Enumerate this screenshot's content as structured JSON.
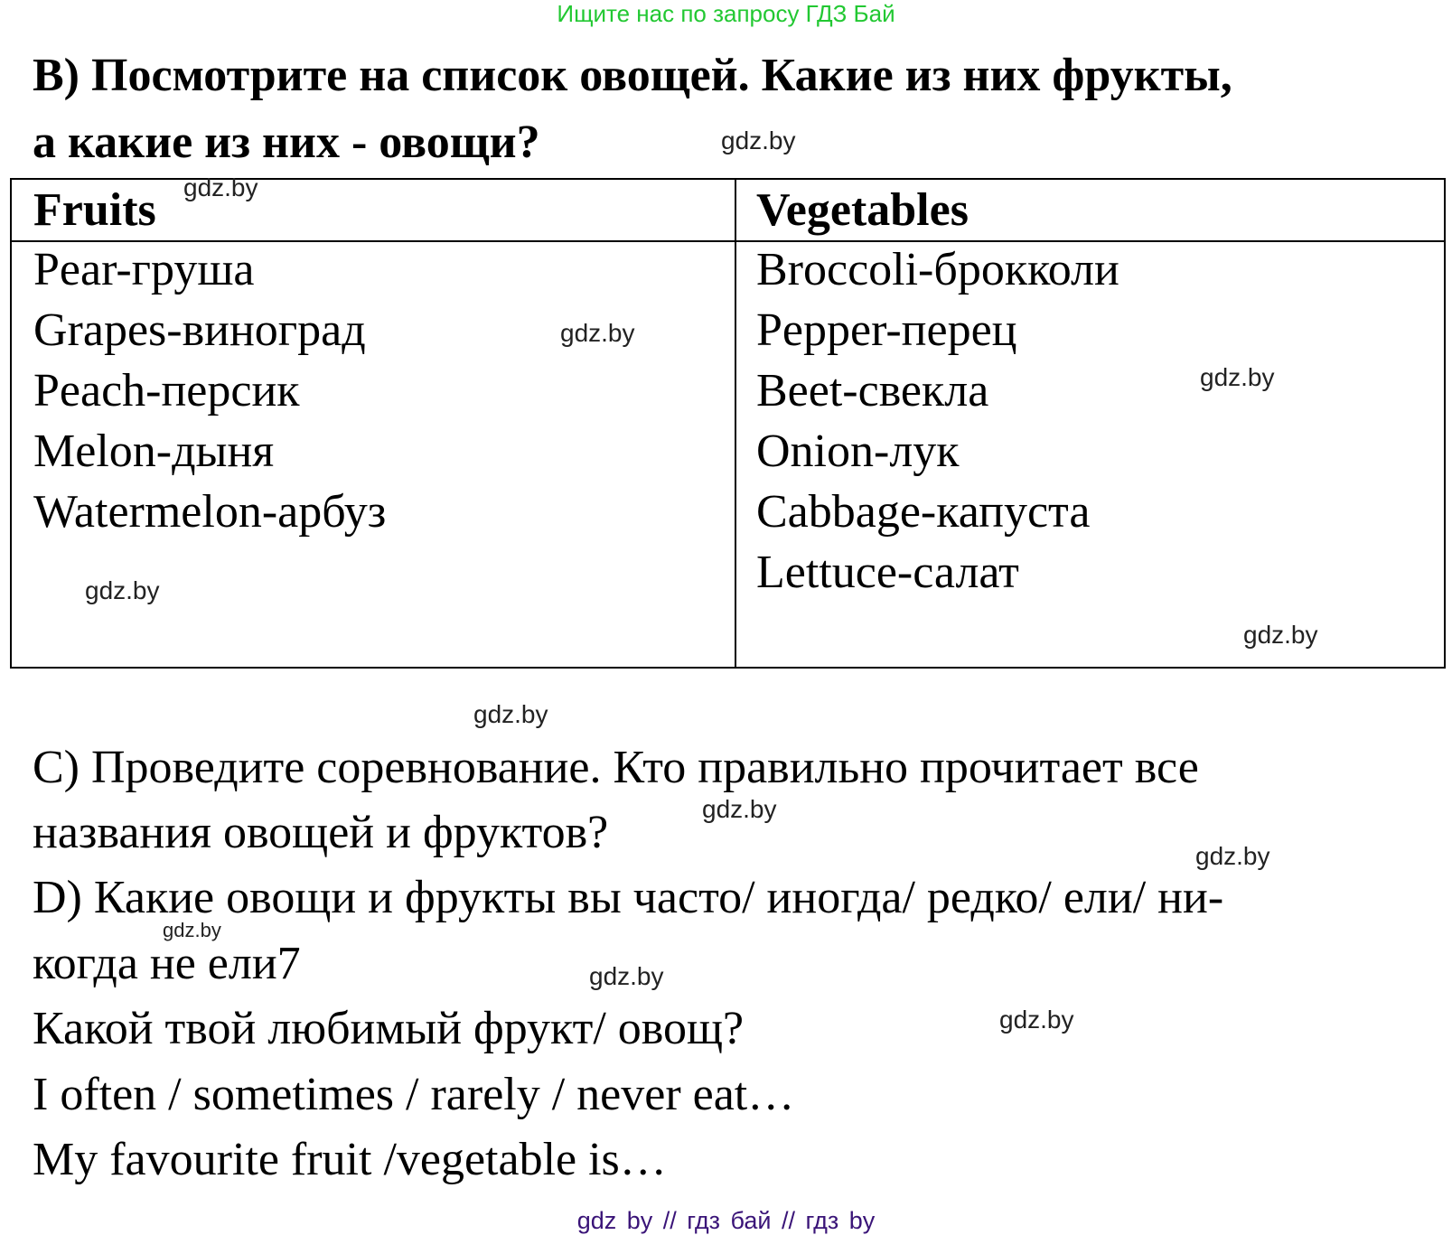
{
  "header_banner": "Ищите нас по запросу ГДЗ Бай",
  "task_b": {
    "line1": "B) Посмотрите на список овощей.  Какие из них фрукты,",
    "line2": "а какие из них - овощи?"
  },
  "table": {
    "headers": [
      "Fruits",
      "Vegetables"
    ],
    "fruits": [
      "Pear-груша",
      "Grapes-виноград",
      "Peach-персик",
      "Melon-дыня",
      "Watermelon-арбуз"
    ],
    "vegetables": [
      "Broccoli-брокколи",
      "Pepper-перец",
      "Beet-свекла",
      "Onion-лук",
      "Cabbage-капуста",
      "Lettuce-салат"
    ]
  },
  "task_c": {
    "line1": "C) Проведите соревнование. Кто правильно прочитает все",
    "line2": "названия овощей и фруктов?"
  },
  "task_d": {
    "line1": "D) Какие овощи и фрукты вы часто/ иногда/ редко/ ели/ ни-",
    "line2": "когда не ели7",
    "line3": "Какой твой любимый фрукт/ овощ?",
    "line4": "I often / sometimes / rarely / never eat…",
    "line5": "My favourite fruit /vegetable is…"
  },
  "watermark": "gdz.by",
  "footer": "gdz by  //  гдз бай  //  гдз by",
  "colors": {
    "banner": "#22c832",
    "footer": "#3a1478"
  }
}
